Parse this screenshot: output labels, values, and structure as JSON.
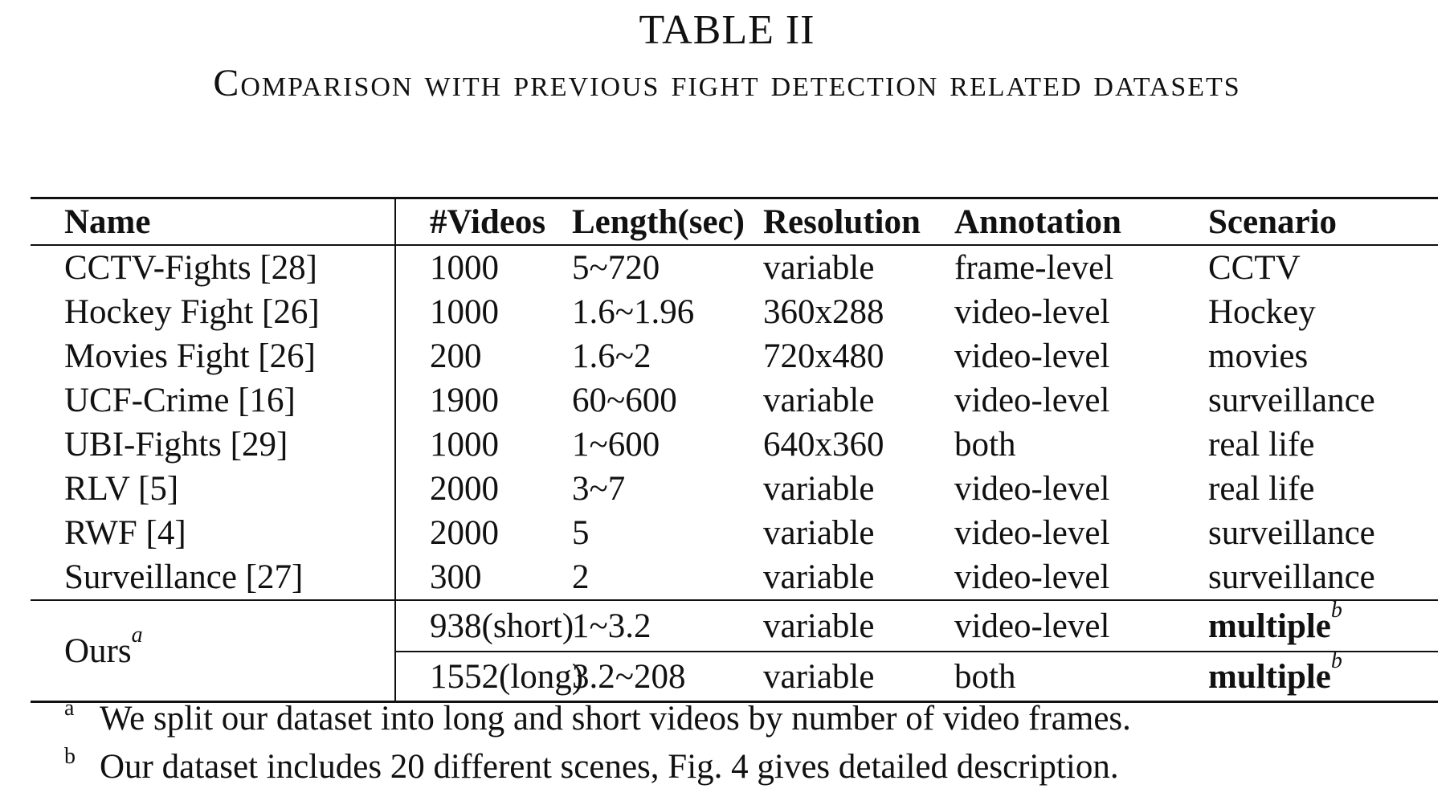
{
  "caption": {
    "label": "TABLE II",
    "title": "Comparison with previous fight detection related datasets"
  },
  "table": {
    "headers": {
      "name": "Name",
      "videos": "#Videos",
      "length": "Length(sec)",
      "resolution": "Resolution",
      "annotation": "Annotation",
      "scenario": "Scenario"
    },
    "rows": [
      {
        "name": "CCTV-Fights [28]",
        "videos": "1000",
        "length": "5~720",
        "resolution": "variable",
        "annotation": "frame-level",
        "scenario": "CCTV"
      },
      {
        "name": "Hockey Fight [26]",
        "videos": "1000",
        "length": "1.6~1.96",
        "resolution": "360x288",
        "annotation": "video-level",
        "scenario": "Hockey"
      },
      {
        "name": "Movies Fight [26]",
        "videos": "200",
        "length": "1.6~2",
        "resolution": "720x480",
        "annotation": "video-level",
        "scenario": "movies"
      },
      {
        "name": "UCF-Crime [16]",
        "videos": "1900",
        "length": "60~600",
        "resolution": "variable",
        "annotation": "video-level",
        "scenario": "surveillance"
      },
      {
        "name": "UBI-Fights [29]",
        "videos": "1000",
        "length": "1~600",
        "resolution": "640x360",
        "annotation": "both",
        "scenario": "real life"
      },
      {
        "name": "RLV [5]",
        "videos": "2000",
        "length": "3~7",
        "resolution": "variable",
        "annotation": "video-level",
        "scenario": "real life"
      },
      {
        "name": "RWF [4]",
        "videos": "2000",
        "length": "5",
        "resolution": "variable",
        "annotation": "video-level",
        "scenario": "surveillance"
      },
      {
        "name": "Surveillance [27]",
        "videos": "300",
        "length": "2",
        "resolution": "variable",
        "annotation": "video-level",
        "scenario": "surveillance"
      }
    ],
    "ours": {
      "name": "Ours",
      "name_mark": "a",
      "rows": [
        {
          "videos": "938(short)",
          "length": "1~3.2",
          "resolution": "variable",
          "annotation": "video-level",
          "scenario": "multiple",
          "scenario_mark": "b"
        },
        {
          "videos": "1552(long)",
          "length": "3.2~208",
          "resolution": "variable",
          "annotation": "both",
          "scenario": "multiple",
          "scenario_mark": "b"
        }
      ]
    }
  },
  "footnotes": [
    {
      "mark": "a",
      "text": "We split our dataset into long and short videos by number of video frames."
    },
    {
      "mark": "b",
      "text": "Our dataset includes 20 different scenes, Fig. 4 gives detailed description."
    }
  ]
}
